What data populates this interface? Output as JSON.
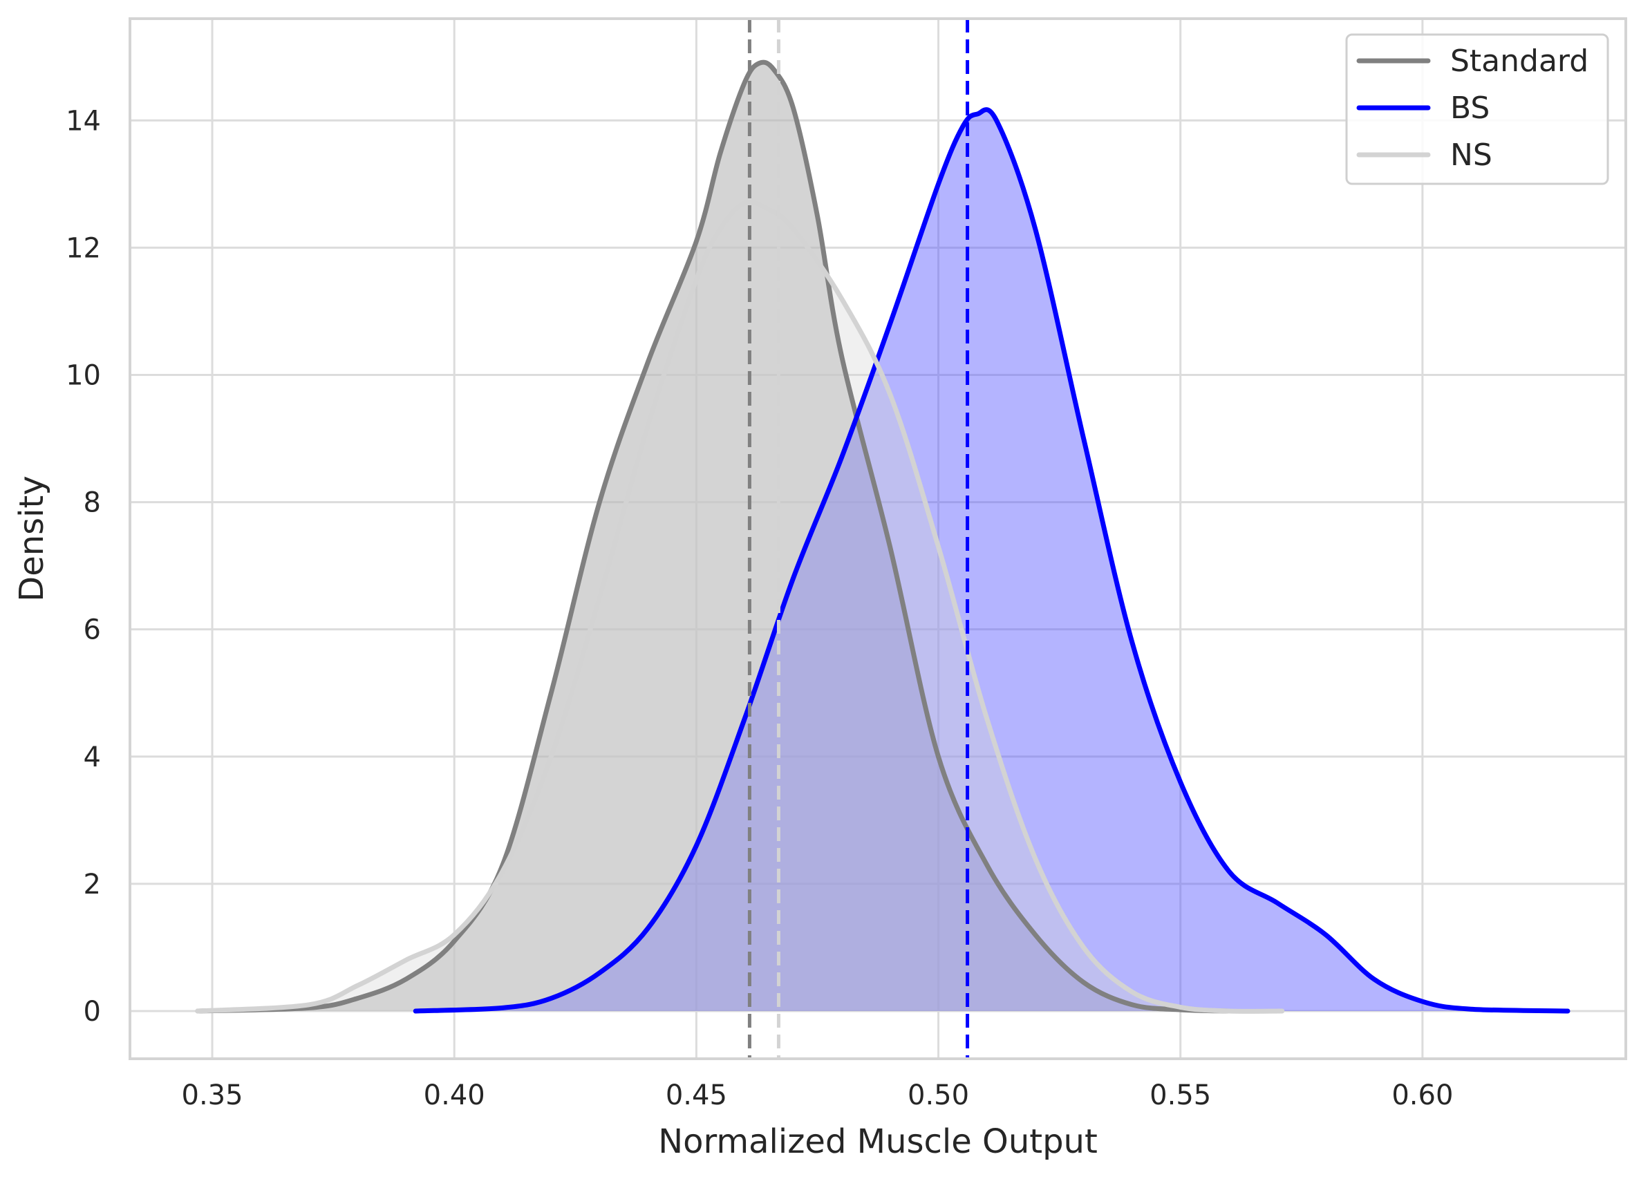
{
  "chart_data": {
    "type": "area",
    "xlabel": "Normalized Muscle Output",
    "ylabel": "Density",
    "xlim": [
      0.333,
      0.642
    ],
    "ylim": [
      -0.75,
      15.6
    ],
    "xticks": [
      0.35,
      0.4,
      0.45,
      0.5,
      0.55,
      0.6
    ],
    "xtick_labels": [
      "0.35",
      "0.40",
      "0.45",
      "0.50",
      "0.55",
      "0.60"
    ],
    "yticks": [
      0,
      2,
      4,
      6,
      8,
      10,
      12,
      14
    ],
    "ytick_labels": [
      "0",
      "2",
      "4",
      "6",
      "8",
      "10",
      "12",
      "14"
    ],
    "grid": true,
    "legend_position": "top-right",
    "series": [
      {
        "name": "Standard",
        "color": "#808080",
        "fill_color": "#b8b8b8",
        "fill_opacity": 0.6,
        "mean": 0.461,
        "points": [
          [
            0.347,
            0.0
          ],
          [
            0.37,
            0.05
          ],
          [
            0.38,
            0.2
          ],
          [
            0.39,
            0.5
          ],
          [
            0.4,
            1.1
          ],
          [
            0.41,
            2.3
          ],
          [
            0.42,
            5.0
          ],
          [
            0.43,
            8.0
          ],
          [
            0.44,
            10.2
          ],
          [
            0.45,
            12.1
          ],
          [
            0.455,
            13.5
          ],
          [
            0.46,
            14.6
          ],
          [
            0.463,
            14.9
          ],
          [
            0.466,
            14.8
          ],
          [
            0.47,
            14.2
          ],
          [
            0.475,
            12.5
          ],
          [
            0.48,
            10.3
          ],
          [
            0.49,
            7.3
          ],
          [
            0.5,
            4.0
          ],
          [
            0.51,
            2.3
          ],
          [
            0.52,
            1.2
          ],
          [
            0.53,
            0.45
          ],
          [
            0.54,
            0.1
          ],
          [
            0.55,
            0.02
          ],
          [
            0.56,
            0.0
          ]
        ]
      },
      {
        "name": "BS",
        "color": "#0000ff",
        "fill_color": "#4d4dff",
        "fill_opacity": 0.42,
        "mean": 0.506,
        "points": [
          [
            0.392,
            0.0
          ],
          [
            0.41,
            0.05
          ],
          [
            0.42,
            0.2
          ],
          [
            0.43,
            0.6
          ],
          [
            0.44,
            1.3
          ],
          [
            0.45,
            2.6
          ],
          [
            0.46,
            4.6
          ],
          [
            0.47,
            6.8
          ],
          [
            0.48,
            8.7
          ],
          [
            0.49,
            10.8
          ],
          [
            0.5,
            13.0
          ],
          [
            0.505,
            13.9
          ],
          [
            0.508,
            14.1
          ],
          [
            0.512,
            14.0
          ],
          [
            0.52,
            12.3
          ],
          [
            0.53,
            9.0
          ],
          [
            0.54,
            5.8
          ],
          [
            0.55,
            3.6
          ],
          [
            0.56,
            2.2
          ],
          [
            0.57,
            1.7
          ],
          [
            0.58,
            1.2
          ],
          [
            0.59,
            0.5
          ],
          [
            0.6,
            0.15
          ],
          [
            0.61,
            0.03
          ],
          [
            0.63,
            0.0
          ]
        ]
      },
      {
        "name": "NS",
        "color": "#d3d3d3",
        "fill_color": "#d3d3d3",
        "fill_opacity": 0.35,
        "mean": 0.467,
        "points": [
          [
            0.347,
            0.0
          ],
          [
            0.37,
            0.1
          ],
          [
            0.38,
            0.4
          ],
          [
            0.39,
            0.8
          ],
          [
            0.4,
            1.2
          ],
          [
            0.41,
            2.2
          ],
          [
            0.42,
            4.0
          ],
          [
            0.43,
            6.5
          ],
          [
            0.44,
            9.2
          ],
          [
            0.45,
            11.5
          ],
          [
            0.455,
            12.3
          ],
          [
            0.46,
            12.7
          ],
          [
            0.465,
            12.6
          ],
          [
            0.47,
            12.3
          ],
          [
            0.48,
            11.2
          ],
          [
            0.49,
            9.7
          ],
          [
            0.5,
            7.3
          ],
          [
            0.51,
            4.6
          ],
          [
            0.52,
            2.4
          ],
          [
            0.53,
            1.0
          ],
          [
            0.54,
            0.3
          ],
          [
            0.55,
            0.06
          ],
          [
            0.56,
            0.0
          ],
          [
            0.571,
            0.0
          ]
        ]
      }
    ]
  }
}
